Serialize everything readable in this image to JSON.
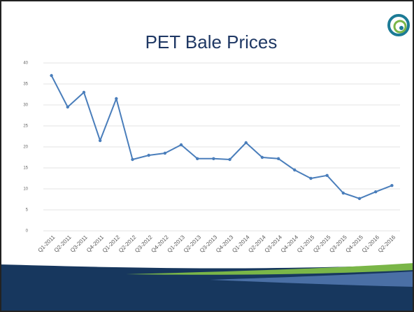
{
  "chart_data": {
    "type": "line",
    "title": "PET Bale Prices",
    "categories": [
      "Q1-2011",
      "Q2-2011",
      "Q3-2011",
      "Q4-2011",
      "Q1-2012",
      "Q2-2012",
      "Q3-2012",
      "Q4-2012",
      "Q1-2013",
      "Q2-2013",
      "Q3-2013",
      "Q4-2013",
      "Q1-2014",
      "Q2-2014",
      "Q3-2014",
      "Q4-2014",
      "Q1-2015",
      "Q2-2015",
      "Q3-2015",
      "Q4-2015",
      "Q1-2016",
      "Q2-2016"
    ],
    "series": [
      {
        "name": "PET Bale Prices",
        "color": "#4a7ebb",
        "values": [
          37,
          29.5,
          33,
          21.5,
          31.5,
          17,
          18,
          18.5,
          20.5,
          17.2,
          17.2,
          17,
          21,
          17.5,
          17.2,
          14.5,
          12.5,
          13.2,
          9,
          7.7,
          9.3,
          10.8
        ]
      }
    ],
    "ylim": [
      0,
      40
    ],
    "yticks": [
      0,
      5,
      10,
      15,
      20,
      25,
      30,
      35,
      40
    ],
    "grid": true
  }
}
